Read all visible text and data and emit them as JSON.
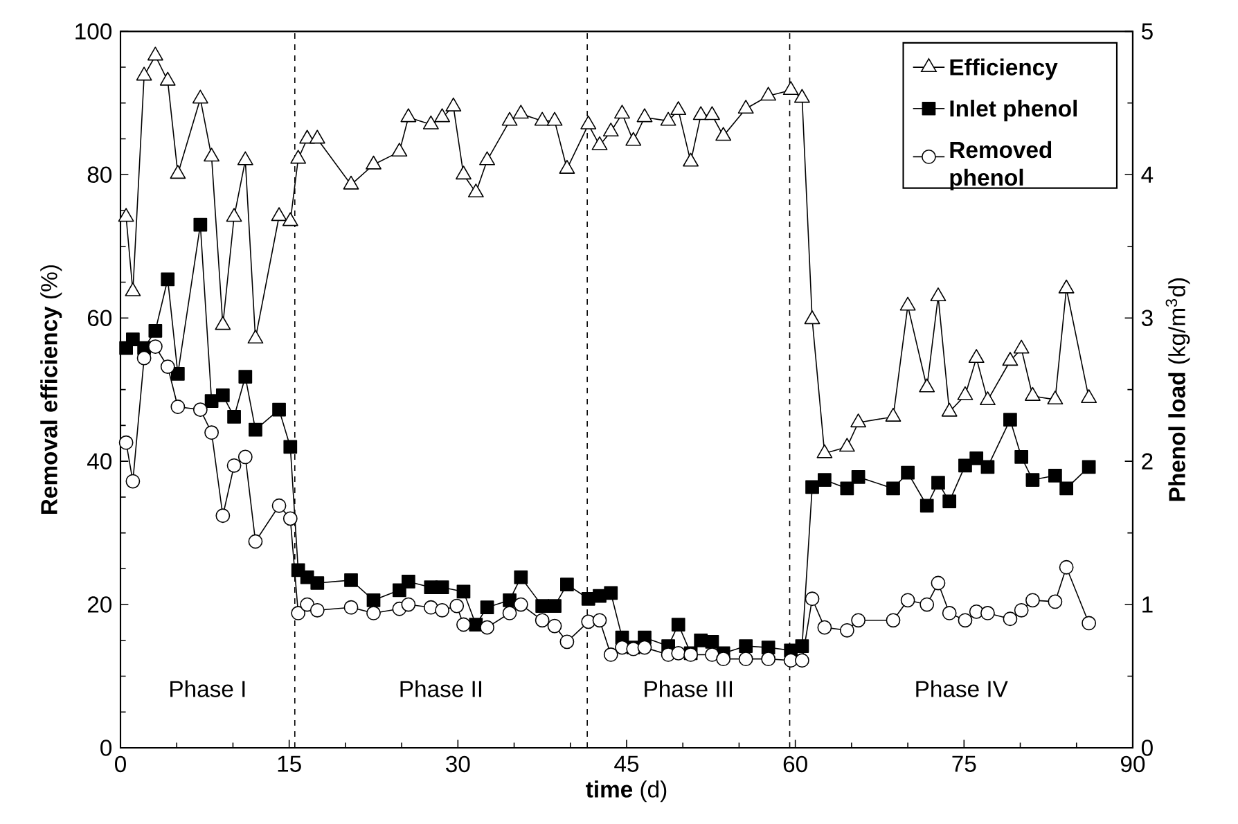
{
  "chart_data": {
    "type": "line",
    "xlabel": "**time** (d)",
    "ylabel": "**Removal efficiency** (%)",
    "y2label": "**Phenol load** (kg/m$^{3}$d)",
    "xlim": [
      0,
      90
    ],
    "xticks": [
      0,
      15,
      30,
      45,
      60,
      75,
      90
    ],
    "ylim": [
      0,
      100
    ],
    "yticks": [
      0,
      20,
      40,
      60,
      80,
      100
    ],
    "y2lim": [
      0,
      5
    ],
    "y2ticks": [
      0,
      1,
      2,
      3,
      4,
      5
    ],
    "legend": "top right",
    "line_style": "solid",
    "series": [
      {
        "name": "Efficiency",
        "color": "#000000",
        "marker": "triangle",
        "axis": "y",
        "x": [
          0.5,
          1.1,
          2.1,
          3.1,
          4.2,
          5.1,
          7.1,
          8.1,
          9.1,
          10.1,
          11.1,
          12.0,
          14.1,
          15.1,
          15.8,
          16.6,
          17.5,
          20.5,
          22.5,
          24.8,
          25.6,
          27.6,
          28.6,
          29.6,
          30.5,
          31.6,
          32.6,
          34.6,
          35.6,
          37.5,
          38.6,
          39.7,
          41.6,
          42.6,
          43.6,
          44.6,
          45.6,
          46.6,
          48.7,
          49.6,
          50.7,
          51.6,
          52.6,
          53.6,
          55.6,
          57.6,
          59.6,
          60.6,
          61.5,
          62.6,
          64.6,
          65.6,
          68.7,
          70.0,
          71.7,
          72.7,
          73.7,
          75.1,
          76.1,
          77.1,
          79.1,
          80.1,
          81.1,
          83.1,
          84.1,
          86.1
        ],
        "values": [
          74.1,
          63.7,
          93.8,
          96.6,
          93.1,
          80.1,
          90.6,
          82.5,
          59.0,
          74.1,
          82.0,
          57.1,
          74.2,
          73.5,
          82.2,
          85.0,
          85.0,
          78.6,
          81.4,
          83.2,
          88.0,
          87.0,
          88.0,
          89.5,
          80.0,
          77.5,
          82.0,
          87.5,
          88.5,
          87.5,
          87.5,
          80.8,
          87.0,
          84.1,
          86.0,
          88.5,
          84.7,
          88.0,
          87.5,
          89.0,
          81.8,
          88.3,
          88.3,
          85.4,
          89.2,
          91.0,
          91.8,
          90.7,
          59.8,
          41.1,
          42.0,
          45.4,
          46.2,
          61.7,
          50.3,
          63.0,
          46.9,
          49.2,
          54.4,
          48.5,
          54.0,
          55.7,
          49.1,
          48.6,
          64.1,
          48.8
        ]
      },
      {
        "name": "Inlet phenol",
        "color": "#000000",
        "marker": "square",
        "axis": "y2",
        "x": [
          0.5,
          1.1,
          2.1,
          3.1,
          4.2,
          5.1,
          7.1,
          8.1,
          9.1,
          10.1,
          11.1,
          12.0,
          14.1,
          15.1,
          15.8,
          16.6,
          17.5,
          20.5,
          22.5,
          24.8,
          25.6,
          27.6,
          28.6,
          30.5,
          31.6,
          32.6,
          34.6,
          35.6,
          37.5,
          38.6,
          39.7,
          41.6,
          42.6,
          43.6,
          44.6,
          45.6,
          46.6,
          48.7,
          49.6,
          50.7,
          51.6,
          52.6,
          53.6,
          55.6,
          57.6,
          59.6,
          60.6,
          61.5,
          62.6,
          64.6,
          65.6,
          68.7,
          70.0,
          71.7,
          72.7,
          73.7,
          75.1,
          76.1,
          77.1,
          79.1,
          80.1,
          81.1,
          83.1,
          84.1,
          86.1
        ],
        "values": [
          2.79,
          2.85,
          2.79,
          2.91,
          3.27,
          2.61,
          3.65,
          2.42,
          2.46,
          2.31,
          2.59,
          2.22,
          2.36,
          2.1,
          1.24,
          1.19,
          1.15,
          1.17,
          1.03,
          1.1,
          1.16,
          1.12,
          1.12,
          1.09,
          0.86,
          0.98,
          1.03,
          1.19,
          0.99,
          0.99,
          1.14,
          1.04,
          1.06,
          1.08,
          0.77,
          0.7,
          0.77,
          0.71,
          0.86,
          0.66,
          0.75,
          0.74,
          0.66,
          0.71,
          0.7,
          0.68,
          0.71,
          1.82,
          1.87,
          1.81,
          1.89,
          1.81,
          1.92,
          1.69,
          1.85,
          1.72,
          1.97,
          2.02,
          1.96,
          2.29,
          2.03,
          1.87,
          1.9,
          1.81,
          1.96
        ]
      },
      {
        "name": "Removed phenol",
        "color": "#000000",
        "marker": "circle",
        "axis": "y2",
        "x": [
          0.5,
          1.1,
          2.1,
          3.1,
          4.2,
          5.1,
          7.1,
          8.1,
          9.1,
          10.1,
          11.1,
          12.0,
          14.1,
          15.1,
          15.8,
          16.6,
          17.5,
          20.5,
          22.5,
          24.8,
          25.6,
          27.6,
          28.6,
          29.9,
          30.5,
          32.6,
          34.6,
          35.6,
          37.5,
          38.6,
          39.7,
          41.6,
          42.6,
          43.6,
          44.6,
          45.6,
          46.6,
          48.7,
          49.6,
          50.7,
          52.6,
          53.6,
          55.6,
          57.6,
          59.6,
          60.6,
          61.5,
          62.6,
          64.6,
          65.6,
          68.7,
          70.0,
          71.7,
          72.7,
          73.7,
          75.1,
          76.1,
          77.1,
          79.1,
          80.1,
          81.1,
          83.1,
          84.1,
          86.1
        ],
        "values": [
          2.13,
          1.86,
          2.72,
          2.8,
          2.66,
          2.38,
          2.36,
          2.2,
          1.62,
          1.97,
          2.03,
          1.44,
          1.69,
          1.6,
          0.94,
          1.0,
          0.96,
          0.98,
          0.94,
          0.97,
          1.0,
          0.98,
          0.96,
          0.99,
          0.86,
          0.84,
          0.94,
          1.0,
          0.89,
          0.85,
          0.74,
          0.88,
          0.89,
          0.65,
          0.7,
          0.69,
          0.7,
          0.65,
          0.66,
          0.65,
          0.65,
          0.62,
          0.62,
          0.62,
          0.61,
          0.61,
          1.04,
          0.84,
          0.82,
          0.89,
          0.89,
          1.03,
          1.0,
          1.15,
          0.94,
          0.89,
          0.95,
          0.94,
          0.9,
          0.96,
          1.03,
          1.02,
          1.26,
          0.87
        ]
      }
    ],
    "ref_lines": [
      {
        "axis": "x",
        "value": 15.5,
        "line_style": "dashed"
      },
      {
        "axis": "x",
        "value": 41.5,
        "line_style": "dashed"
      },
      {
        "axis": "x",
        "value": 59.5,
        "line_style": "dashed"
      }
    ],
    "annotations": [
      "Phase I",
      "Phase II",
      "Phase III",
      "Phase IV"
    ]
  }
}
